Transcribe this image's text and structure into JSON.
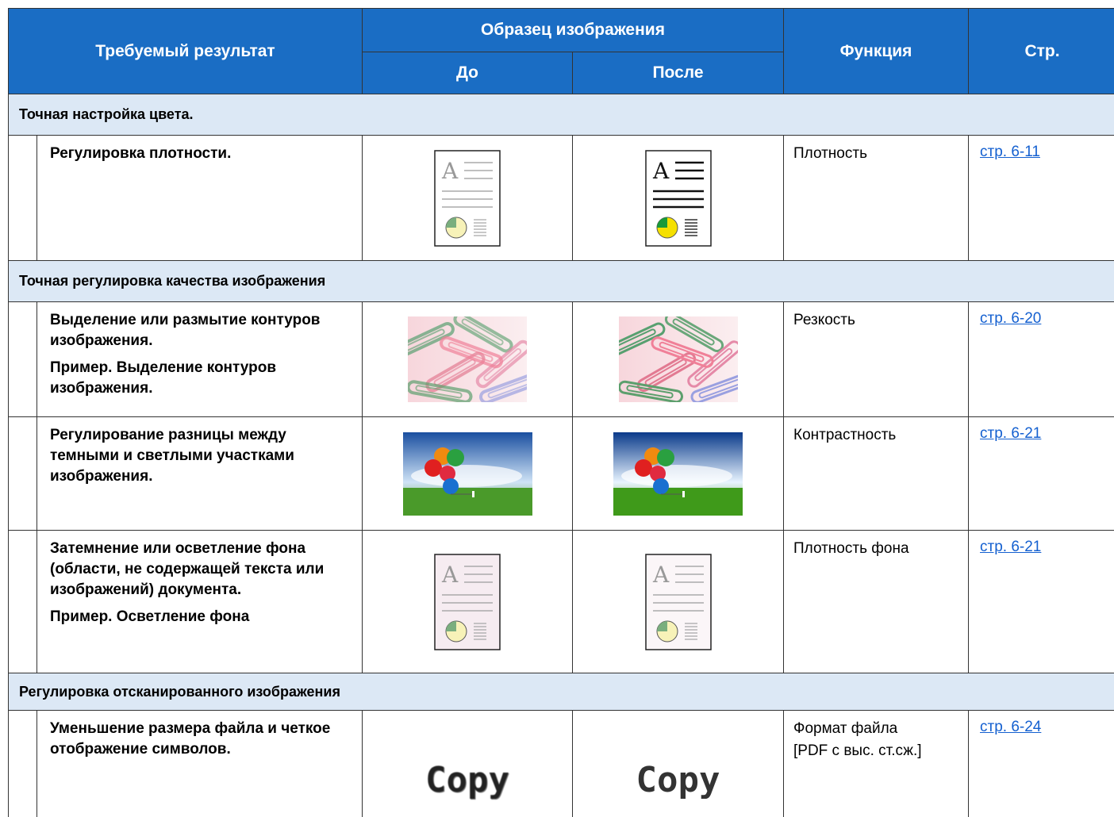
{
  "header": {
    "result": "Требуемый результат",
    "sample": "Образец изображения",
    "before": "До",
    "after": "После",
    "function": "Функция",
    "page": "Стр."
  },
  "sections": [
    {
      "title": "Точная настройка цвета.",
      "rows": [
        {
          "description": [
            "Регулировка плотности."
          ],
          "function": [
            "Плотность"
          ],
          "page": "стр. 6-11"
        }
      ]
    },
    {
      "title": "Точная регулировка качества изображения",
      "rows": [
        {
          "description": [
            "Выделение или размытие контуров изображения.",
            "Пример. Выделение контуров изображения."
          ],
          "function": [
            "Резкость"
          ],
          "page": "стр. 6-20"
        },
        {
          "description": [
            "Регулирование разницы между темными и светлыми участками изображения."
          ],
          "function": [
            "Контрастность"
          ],
          "page": "стр. 6-21"
        },
        {
          "description": [
            "Затемнение или осветление фона (области, не содержащей текста или изображений) документа.",
            "Пример. Осветление фона"
          ],
          "function": [
            "Плотность фона"
          ],
          "page": "стр. 6-21"
        }
      ]
    },
    {
      "title": "Регулировка отсканированного изображения",
      "rows": [
        {
          "description": [
            "Уменьшение размера файла и четкое отображение символов."
          ],
          "function": [
            "Формат файла",
            "[PDF с выс. ст.сж.]"
          ],
          "page": "стр. 6-24",
          "sample": "Copy"
        }
      ]
    }
  ]
}
